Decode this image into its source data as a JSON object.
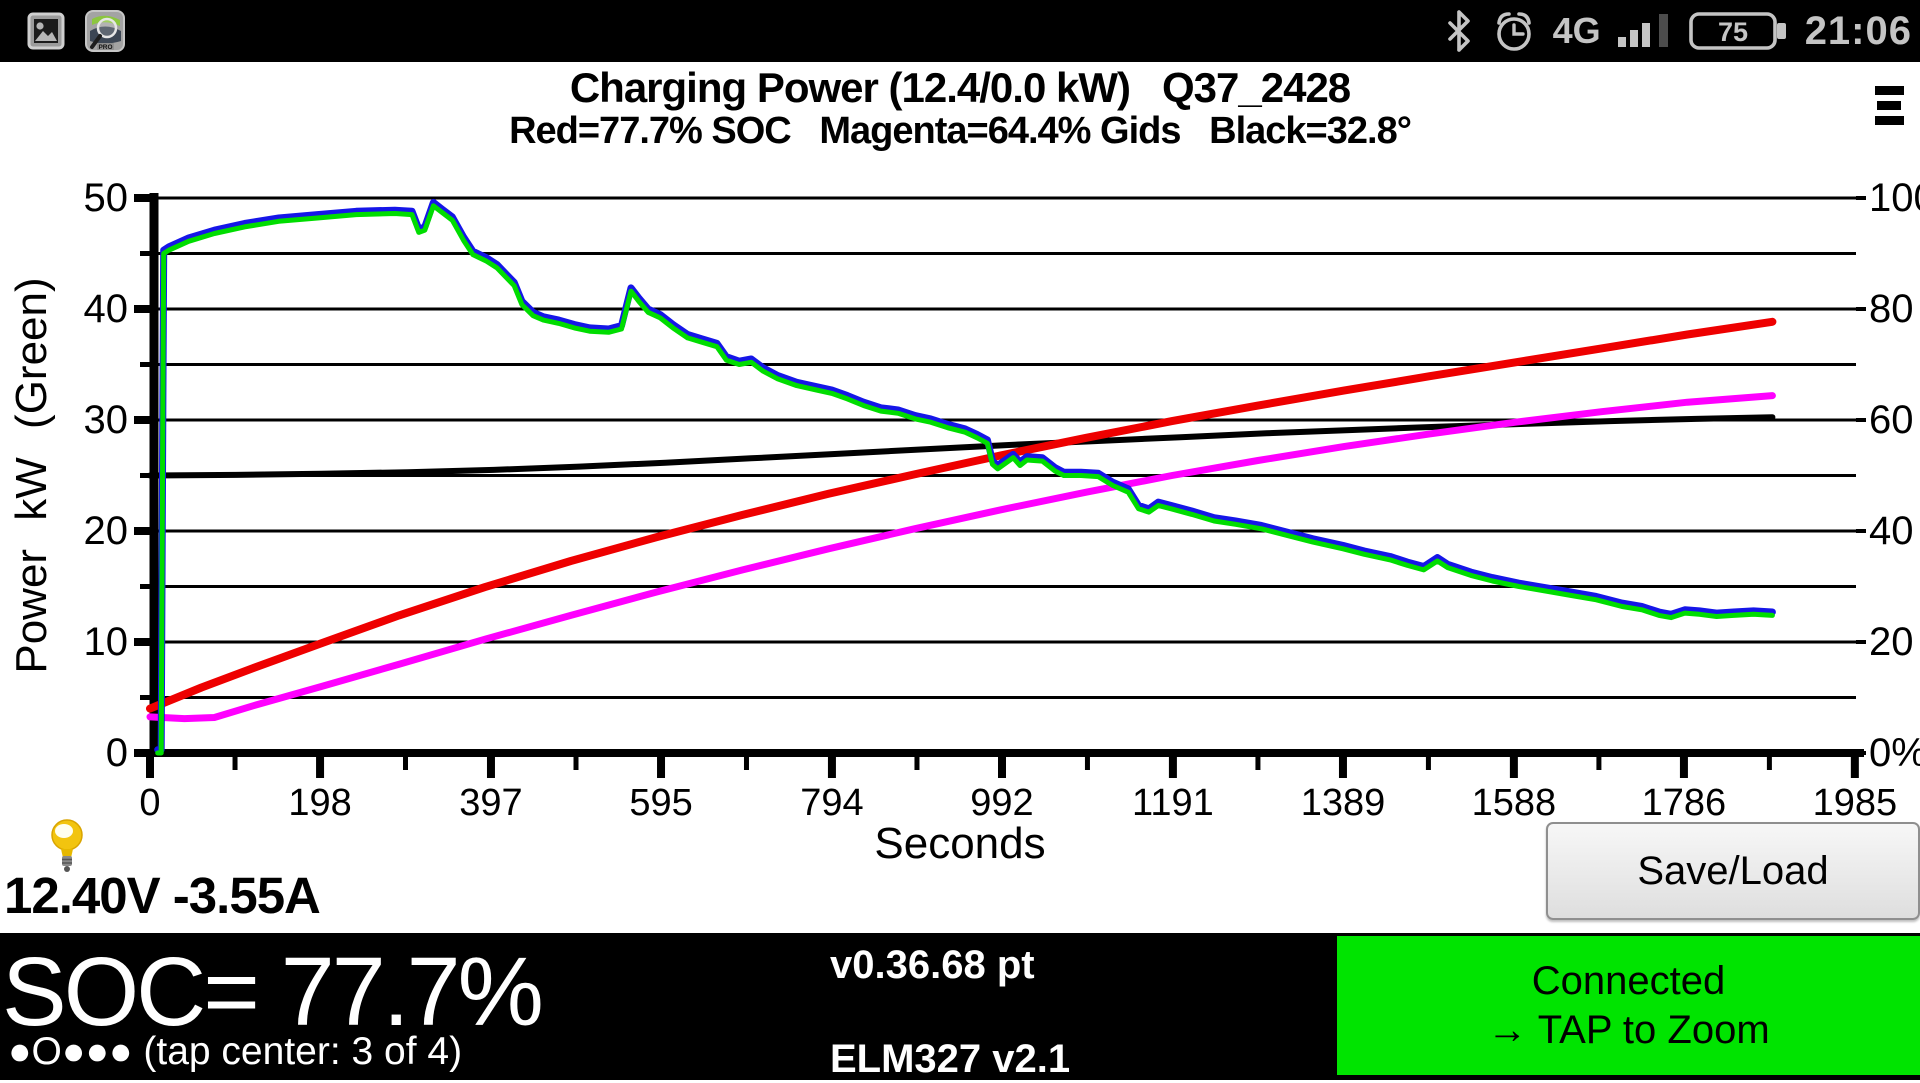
{
  "status_bar": {
    "network": "4G",
    "battery": "75",
    "time": "21:06",
    "icons": [
      "gallery-notification-icon",
      "leafspy-app-icon",
      "bluetooth-icon",
      "alarm-icon",
      "signal-bars-icon",
      "battery-icon"
    ]
  },
  "header": {
    "title": "Charging Power (12.4/0.0 kW)   Q37_2428",
    "subtitle": "Red=77.7% SOC   Magenta=64.4% Gids   Black=32.8°",
    "menu_icon": "hamburger-menu"
  },
  "chart_data": {
    "type": "line",
    "title": "Charging Power (12.4/0.0 kW) Q37_2428",
    "xlabel": "Seconds",
    "y_left_label": "Power kW (Green)",
    "x_range": [
      0,
      1991
    ],
    "x_ticks": [
      0,
      198,
      397,
      595,
      794,
      992,
      1191,
      1389,
      1588,
      1786,
      1985
    ],
    "y_left_range": [
      0,
      50
    ],
    "y_left_ticks": [
      0,
      10,
      20,
      30,
      40,
      50
    ],
    "y_right_range": [
      0,
      100
    ],
    "y_right_ticks": [
      {
        "v": 0,
        "label": "0%"
      },
      {
        "v": 20,
        "label": "20"
      },
      {
        "v": 40,
        "label": "40"
      },
      {
        "v": 60,
        "label": "60"
      },
      {
        "v": 80,
        "label": "80"
      },
      {
        "v": 100,
        "label": "100"
      }
    ],
    "grid_step_left_kw": 5,
    "legend": {
      "red": "77.7% SOC",
      "magenta": "64.4% Gids",
      "black": "32.8°",
      "green": "Power kW"
    },
    "current_values": {
      "power_kw": 12.4,
      "power2_kw": 0.0,
      "soc_pct": 77.7,
      "gids_pct": 64.4,
      "temp_deg": 32.8
    },
    "series": [
      {
        "name": "temp_black",
        "color": "#000000",
        "width": 6,
        "axis": "right",
        "points": [
          [
            0,
            50.0
          ],
          [
            100,
            50.1
          ],
          [
            200,
            50.3
          ],
          [
            300,
            50.6
          ],
          [
            400,
            51.0
          ],
          [
            500,
            51.6
          ],
          [
            600,
            52.3
          ],
          [
            700,
            53.1
          ],
          [
            800,
            53.9
          ],
          [
            900,
            54.7
          ],
          [
            1000,
            55.5
          ],
          [
            1100,
            56.2
          ],
          [
            1200,
            56.9
          ],
          [
            1300,
            57.6
          ],
          [
            1400,
            58.2
          ],
          [
            1500,
            58.8
          ],
          [
            1600,
            59.3
          ],
          [
            1700,
            59.8
          ],
          [
            1800,
            60.2
          ],
          [
            1889,
            60.5
          ]
        ]
      },
      {
        "name": "gids_magenta",
        "color": "#ff00ff",
        "width": 7,
        "axis": "right",
        "points": [
          [
            0,
            6.5
          ],
          [
            40,
            6.2
          ],
          [
            75,
            6.4
          ],
          [
            120,
            8.5
          ],
          [
            200,
            12.0
          ],
          [
            290,
            16.0
          ],
          [
            390,
            20.5
          ],
          [
            490,
            24.8
          ],
          [
            590,
            29.0
          ],
          [
            690,
            33.0
          ],
          [
            790,
            36.8
          ],
          [
            890,
            40.4
          ],
          [
            990,
            43.8
          ],
          [
            1090,
            47.0
          ],
          [
            1190,
            50.0
          ],
          [
            1290,
            52.7
          ],
          [
            1390,
            55.2
          ],
          [
            1490,
            57.5
          ],
          [
            1590,
            59.6
          ],
          [
            1690,
            61.5
          ],
          [
            1790,
            63.2
          ],
          [
            1889,
            64.4
          ]
        ]
      },
      {
        "name": "soc_red",
        "color": "#ee0000",
        "width": 8,
        "axis": "right",
        "points": [
          [
            0,
            8.0
          ],
          [
            60,
            11.8
          ],
          [
            120,
            15.3
          ],
          [
            200,
            19.8
          ],
          [
            290,
            24.8
          ],
          [
            390,
            29.9
          ],
          [
            490,
            34.6
          ],
          [
            590,
            38.9
          ],
          [
            690,
            42.9
          ],
          [
            790,
            46.7
          ],
          [
            890,
            50.2
          ],
          [
            990,
            53.6
          ],
          [
            1090,
            56.8
          ],
          [
            1190,
            59.8
          ],
          [
            1290,
            62.6
          ],
          [
            1390,
            65.3
          ],
          [
            1490,
            67.9
          ],
          [
            1590,
            70.4
          ],
          [
            1690,
            72.9
          ],
          [
            1790,
            75.4
          ],
          [
            1889,
            77.7
          ]
        ]
      },
      {
        "name": "power_blue",
        "color": "#1616e8",
        "width": 7,
        "axis": "left",
        "points_same_as": "power_green",
        "offset": 0.3
      },
      {
        "name": "power_green",
        "color": "#00dd00",
        "width": 5,
        "axis": "left",
        "points": [
          [
            9,
            0
          ],
          [
            13,
            0
          ],
          [
            15,
            32
          ],
          [
            16,
            45
          ],
          [
            22,
            45.3
          ],
          [
            45,
            46.1
          ],
          [
            75,
            46.8
          ],
          [
            110,
            47.4
          ],
          [
            150,
            47.9
          ],
          [
            195,
            48.2
          ],
          [
            240,
            48.5
          ],
          [
            285,
            48.6
          ],
          [
            305,
            48.5
          ],
          [
            313,
            46.9
          ],
          [
            320,
            47.1
          ],
          [
            330,
            49.3
          ],
          [
            340,
            48.7
          ],
          [
            352,
            48.0
          ],
          [
            365,
            46.2
          ],
          [
            376,
            44.9
          ],
          [
            392,
            44.3
          ],
          [
            404,
            43.7
          ],
          [
            414,
            42.9
          ],
          [
            424,
            42.1
          ],
          [
            433,
            40.4
          ],
          [
            446,
            39.4
          ],
          [
            458,
            39.0
          ],
          [
            476,
            38.7
          ],
          [
            494,
            38.3
          ],
          [
            512,
            38.0
          ],
          [
            534,
            37.9
          ],
          [
            549,
            38.2
          ],
          [
            560,
            41.6
          ],
          [
            569,
            40.7
          ],
          [
            580,
            39.7
          ],
          [
            594,
            39.2
          ],
          [
            609,
            38.3
          ],
          [
            626,
            37.4
          ],
          [
            643,
            37.0
          ],
          [
            660,
            36.6
          ],
          [
            671,
            35.4
          ],
          [
            686,
            35.0
          ],
          [
            700,
            35.2
          ],
          [
            714,
            34.4
          ],
          [
            731,
            33.7
          ],
          [
            753,
            33.1
          ],
          [
            776,
            32.7
          ],
          [
            794,
            32.4
          ],
          [
            812,
            31.9
          ],
          [
            831,
            31.3
          ],
          [
            851,
            30.8
          ],
          [
            871,
            30.6
          ],
          [
            891,
            30.1
          ],
          [
            909,
            29.8
          ],
          [
            929,
            29.3
          ],
          [
            949,
            28.9
          ],
          [
            963,
            28.4
          ],
          [
            975,
            27.9
          ],
          [
            981,
            26.0
          ],
          [
            987,
            25.6
          ],
          [
            996,
            26.1
          ],
          [
            1005,
            26.6
          ],
          [
            1013,
            25.9
          ],
          [
            1021,
            26.4
          ],
          [
            1039,
            26.3
          ],
          [
            1054,
            25.4
          ],
          [
            1064,
            25.0
          ],
          [
            1084,
            25.0
          ],
          [
            1104,
            24.9
          ],
          [
            1121,
            24.1
          ],
          [
            1139,
            23.5
          ],
          [
            1151,
            22.0
          ],
          [
            1163,
            21.7
          ],
          [
            1174,
            22.3
          ],
          [
            1189,
            22.0
          ],
          [
            1213,
            21.5
          ],
          [
            1239,
            20.9
          ],
          [
            1264,
            20.6
          ],
          [
            1294,
            20.2
          ],
          [
            1324,
            19.6
          ],
          [
            1354,
            19.0
          ],
          [
            1389,
            18.4
          ],
          [
            1414,
            17.9
          ],
          [
            1444,
            17.4
          ],
          [
            1464,
            16.9
          ],
          [
            1483,
            16.5
          ],
          [
            1499,
            17.3
          ],
          [
            1511,
            16.7
          ],
          [
            1538,
            16.0
          ],
          [
            1563,
            15.5
          ],
          [
            1594,
            15.0
          ],
          [
            1624,
            14.6
          ],
          [
            1654,
            14.2
          ],
          [
            1684,
            13.8
          ],
          [
            1714,
            13.2
          ],
          [
            1737,
            12.9
          ],
          [
            1757,
            12.4
          ],
          [
            1771,
            12.2
          ],
          [
            1787,
            12.6
          ],
          [
            1804,
            12.5
          ],
          [
            1824,
            12.3
          ],
          [
            1844,
            12.4
          ],
          [
            1867,
            12.5
          ],
          [
            1889,
            12.4
          ]
        ]
      }
    ]
  },
  "footer": {
    "voltage_current": "12.40V -3.55A",
    "bulb_icon": "lightbulb"
  },
  "buttons": {
    "save_load": "Save/Load"
  },
  "bottom_bar": {
    "soc": "SOC= 77.7%",
    "pager": "●O●●● (tap center: 3 of 4)",
    "version1": "v0.36.68 pt",
    "version2": "ELM327 v2.1",
    "connected": "Connected",
    "tap_hint": "→ TAP to Zoom",
    "status_bg": "#00e400"
  }
}
